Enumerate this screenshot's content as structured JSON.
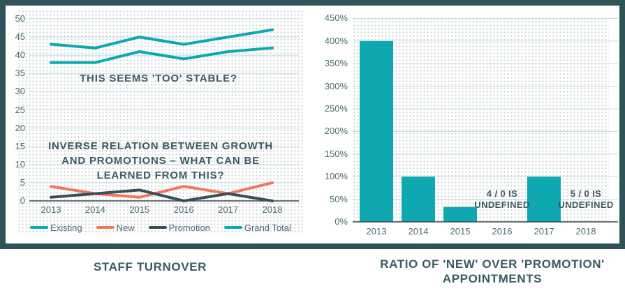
{
  "captions": {
    "left": "STAFF TURNOVER",
    "right_line1": "RATIO OF 'NEW' OVER 'PROMOTION'",
    "right_line2": "APPOINTMENTS"
  },
  "colors": {
    "frame_border": "#2F5358",
    "teal_series": "#0FA8B1",
    "coral_series": "#F3785B",
    "slate_series": "#3A4E56",
    "gridline": "#C2DDE1",
    "axis_line": "#35474E",
    "tick_text": "#4C6B72",
    "annotation_text": "#3C5A63",
    "caption_text": "#3A5A62",
    "dot_pattern": "#CBD0D3"
  },
  "chart_data": [
    {
      "type": "line",
      "title": "STAFF TURNOVER",
      "categories": [
        "2013",
        "2014",
        "2015",
        "2016",
        "2017",
        "2018"
      ],
      "series": [
        {
          "name": "Existing",
          "color": "#0FA8B1",
          "values": [
            38,
            38,
            41,
            39,
            41,
            42
          ]
        },
        {
          "name": "New",
          "color": "#F3785B",
          "values": [
            4,
            2,
            1,
            4,
            2,
            5
          ]
        },
        {
          "name": "Promotion",
          "color": "#3A4E56",
          "values": [
            1,
            2,
            3,
            0,
            2,
            0
          ]
        },
        {
          "name": "Grand Total",
          "color": "#0FA8B1",
          "values": [
            43,
            42,
            45,
            43,
            45,
            47
          ]
        }
      ],
      "ylim": [
        0,
        50
      ],
      "yticks": [
        0,
        5,
        10,
        15,
        20,
        25,
        30,
        35,
        40,
        45,
        50
      ],
      "grid": true,
      "legend_position": "bottom",
      "annotations": [
        {
          "lines": [
            "THIS SEEMS 'TOO' STABLE?"
          ]
        },
        {
          "lines": [
            "INVERSE RELATION BETWEEN GROWTH",
            "AND PROMOTIONS – WHAT CAN BE",
            "LEARNED FROM THIS?"
          ]
        }
      ]
    },
    {
      "type": "bar",
      "title": "RATIO OF 'NEW' OVER 'PROMOTION' APPOINTMENTS",
      "categories": [
        "2013",
        "2014",
        "2015",
        "2016",
        "2017",
        "2018"
      ],
      "values": [
        400,
        100,
        33,
        null,
        100,
        null
      ],
      "bar_color": "#0FA8B1",
      "ylim": [
        0,
        450
      ],
      "yticks": [
        0,
        50,
        100,
        150,
        200,
        250,
        300,
        350,
        400,
        450
      ],
      "ytick_suffix": "%",
      "grid": true,
      "annotations": [
        {
          "lines": [
            "4 / 0 IS",
            "UNDEFINED"
          ]
        },
        {
          "lines": [
            "5 / 0 IS",
            "UNDEFINED"
          ]
        }
      ]
    }
  ]
}
